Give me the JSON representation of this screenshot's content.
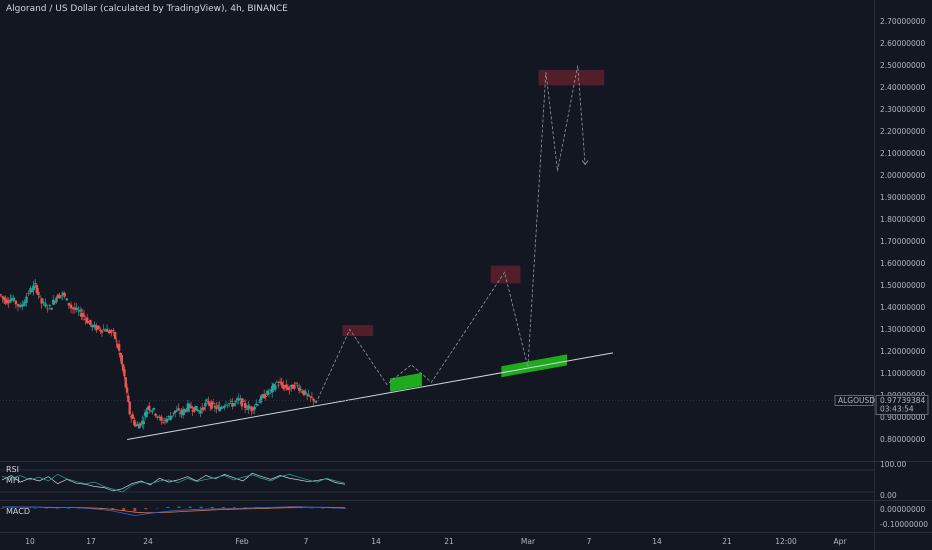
{
  "window": {
    "title": "Algorand / US Dollar (calculated by TradingView), 4h, BINANCE"
  },
  "colors": {
    "background": "#131722",
    "candle_up": "#26a69a",
    "candle_down": "#ef5350",
    "buy_zone": "#1fb31f",
    "sell_zone": "#5a1f2a",
    "trendline": "#d1d4dc",
    "rsi": "#26a69a",
    "mfi": "#d1d4dc",
    "macd": "#2962ff",
    "signal": "#ff6d00"
  },
  "chart_data": {
    "type": "candlestick",
    "title": "Algorand / US Dollar (calculated by TradingView), 4h, BINANCE",
    "symbol": "ALGOUSD",
    "last_price_label": "0.97739384",
    "countdown_label": "03:43:54",
    "price_axis": {
      "range": [
        0.75,
        2.75
      ],
      "ticks": [
        "2.70000000",
        "2.60000000",
        "2.50000000",
        "2.40000000",
        "2.30000000",
        "2.20000000",
        "2.10000000",
        "2.00000000",
        "1.90000000",
        "1.80000000",
        "1.70000000",
        "1.60000000",
        "1.50000000",
        "1.40000000",
        "1.30000000",
        "1.20000000",
        "1.10000000",
        "1.00000000",
        "0.90000000",
        "0.80000000"
      ]
    },
    "time_axis": {
      "ticks": [
        "10",
        "17",
        "24",
        "Feb",
        "7",
        "14",
        "21",
        "Mar",
        "7",
        "14",
        "21",
        "12:00",
        "Apr"
      ]
    },
    "price_path": [
      {
        "x": 0,
        "y": 1.46
      },
      {
        "x": 0.6,
        "y": 1.43
      },
      {
        "x": 1.2,
        "y": 1.44
      },
      {
        "x": 2,
        "y": 1.4
      },
      {
        "x": 2.8,
        "y": 1.47
      },
      {
        "x": 3.4,
        "y": 1.5
      },
      {
        "x": 4,
        "y": 1.42
      },
      {
        "x": 4.8,
        "y": 1.4
      },
      {
        "x": 5.4,
        "y": 1.45
      },
      {
        "x": 6,
        "y": 1.46
      },
      {
        "x": 6.8,
        "y": 1.4
      },
      {
        "x": 7.5,
        "y": 1.38
      },
      {
        "x": 8,
        "y": 1.36
      },
      {
        "x": 8.6,
        "y": 1.32
      },
      {
        "x": 9.4,
        "y": 1.3
      },
      {
        "x": 10,
        "y": 1.3
      },
      {
        "x": 10.8,
        "y": 1.28
      },
      {
        "x": 11.3,
        "y": 1.2
      },
      {
        "x": 11.8,
        "y": 1.08
      },
      {
        "x": 12.3,
        "y": 0.92
      },
      {
        "x": 12.9,
        "y": 0.86
      },
      {
        "x": 13.5,
        "y": 0.88
      },
      {
        "x": 14,
        "y": 0.95
      },
      {
        "x": 14.6,
        "y": 0.93
      },
      {
        "x": 15.3,
        "y": 0.88
      },
      {
        "x": 16,
        "y": 0.9
      },
      {
        "x": 16.6,
        "y": 0.93
      },
      {
        "x": 17.2,
        "y": 0.92
      },
      {
        "x": 17.8,
        "y": 0.95
      },
      {
        "x": 18.4,
        "y": 0.94
      },
      {
        "x": 19,
        "y": 0.93
      },
      {
        "x": 19.6,
        "y": 0.97
      },
      {
        "x": 20.2,
        "y": 0.95
      },
      {
        "x": 20.8,
        "y": 0.94
      },
      {
        "x": 21.4,
        "y": 0.97
      },
      {
        "x": 22,
        "y": 0.96
      },
      {
        "x": 22.6,
        "y": 0.98
      },
      {
        "x": 23.2,
        "y": 0.95
      },
      {
        "x": 23.8,
        "y": 0.94
      },
      {
        "x": 24.4,
        "y": 0.97
      },
      {
        "x": 25,
        "y": 1.0
      },
      {
        "x": 25.6,
        "y": 1.02
      },
      {
        "x": 26.2,
        "y": 1.06
      },
      {
        "x": 26.8,
        "y": 1.04
      },
      {
        "x": 27.4,
        "y": 1.03
      },
      {
        "x": 28,
        "y": 1.05
      },
      {
        "x": 28.6,
        "y": 1.02
      },
      {
        "x": 29.2,
        "y": 0.99
      },
      {
        "x": 29.8,
        "y": 0.98
      }
    ],
    "trendline": {
      "from": {
        "x": 12.0,
        "y": 0.8
      },
      "to": {
        "x": 55.0,
        "y": 1.18
      }
    },
    "projection_path": [
      {
        "x": 29.8,
        "y": 0.965
      },
      {
        "x": 33.0,
        "y": 1.3
      },
      {
        "x": 36.5,
        "y": 1.05
      },
      {
        "x": 38.8,
        "y": 1.14
      },
      {
        "x": 40.7,
        "y": 1.06
      },
      {
        "x": 47.6,
        "y": 1.56
      },
      {
        "x": 49.8,
        "y": 1.13
      },
      {
        "x": 51.5,
        "y": 2.47
      },
      {
        "x": 52.6,
        "y": 2.02
      },
      {
        "x": 54.5,
        "y": 2.5
      },
      {
        "x": 55.2,
        "y": 2.05
      }
    ],
    "zones": [
      {
        "kind": "sell",
        "x0": 32.3,
        "x1": 35.2,
        "y0": 1.27,
        "y1": 1.32
      },
      {
        "kind": "buy",
        "x0": 36.8,
        "x1": 39.8,
        "y0": 1.03,
        "y1": 1.09,
        "slanted": true
      },
      {
        "kind": "sell",
        "x0": 46.3,
        "x1": 49.1,
        "y0": 1.51,
        "y1": 1.59
      },
      {
        "kind": "buy",
        "x0": 47.3,
        "x1": 53.5,
        "y0": 1.11,
        "y1": 1.16,
        "slanted": true
      },
      {
        "kind": "sell",
        "x0": 50.8,
        "x1": 57.0,
        "y0": 2.41,
        "y1": 2.48
      }
    ],
    "indicators": {
      "rsi": {
        "labels": [
          "RSI",
          "MFI"
        ],
        "axis_ticks": [
          "100.00",
          "0.00"
        ],
        "rsi_values": [
          58,
          55,
          60,
          52,
          57,
          50,
          62,
          54,
          49,
          45,
          48,
          40,
          35,
          30,
          42,
          48,
          45,
          50,
          52,
          47,
          55,
          49,
          53,
          56,
          60,
          52,
          57,
          61,
          55,
          50,
          58,
          62,
          57,
          52,
          48,
          55,
          50,
          46
        ],
        "mfi_values": [
          52,
          60,
          48,
          55,
          50,
          58,
          45,
          53,
          46,
          44,
          40,
          38,
          32,
          36,
          45,
          50,
          43,
          55,
          48,
          52,
          58,
          50,
          60,
          54,
          62,
          56,
          50,
          64,
          58,
          53,
          60,
          55,
          52,
          49,
          51,
          54,
          47,
          44
        ]
      },
      "macd": {
        "labels": [
          "MACD"
        ],
        "axis_ticks": [
          "0.00000000",
          "-0.10000000"
        ],
        "macd_values": [
          0.005,
          0.008,
          0.004,
          0.006,
          0.003,
          0.002,
          0.004,
          0.001,
          -0.004,
          -0.01,
          -0.02,
          -0.035,
          -0.05,
          -0.04,
          -0.03,
          -0.022,
          -0.015,
          -0.012,
          -0.008,
          -0.006,
          -0.004,
          -0.003,
          -0.001,
          0.002,
          0.004,
          0.006,
          0.009,
          0.008,
          0.006,
          0.003,
          0.001,
          -0.002
        ],
        "signal_values": [
          0.006,
          0.007,
          0.006,
          0.006,
          0.005,
          0.004,
          0.004,
          0.003,
          0.001,
          -0.003,
          -0.009,
          -0.018,
          -0.028,
          -0.032,
          -0.031,
          -0.029,
          -0.025,
          -0.021,
          -0.017,
          -0.013,
          -0.01,
          -0.008,
          -0.006,
          -0.004,
          -0.002,
          0.0,
          0.002,
          0.004,
          0.005,
          0.005,
          0.004,
          0.002
        ],
        "histogram": [
          -0.001,
          0.001,
          -0.002,
          0.0,
          -0.002,
          -0.002,
          0.0,
          -0.002,
          -0.005,
          -0.007,
          -0.011,
          -0.017,
          -0.022,
          -0.008,
          0.001,
          0.007,
          0.01,
          0.009,
          0.009,
          0.007,
          0.006,
          0.005,
          0.005,
          0.006,
          0.006,
          0.006,
          0.007,
          0.004,
          0.001,
          -0.002,
          -0.003,
          -0.004
        ]
      }
    }
  }
}
